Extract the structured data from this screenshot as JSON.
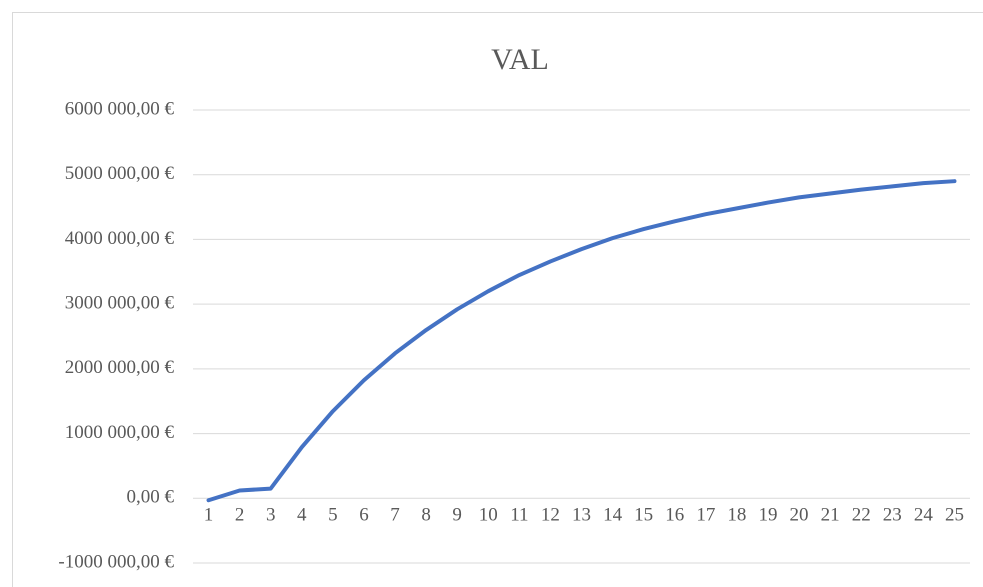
{
  "chart_data": {
    "type": "line",
    "title": "VAL",
    "categories": [
      "1",
      "2",
      "3",
      "4",
      "5",
      "6",
      "7",
      "8",
      "9",
      "10",
      "11",
      "12",
      "13",
      "14",
      "15",
      "16",
      "17",
      "18",
      "19",
      "20",
      "21",
      "22",
      "23",
      "24",
      "25"
    ],
    "series": [
      {
        "name": "VAL",
        "color": "#4472c4",
        "values": [
          -30000,
          120000,
          150000,
          790000,
          1345000,
          1824000,
          2240000,
          2600000,
          2920000,
          3200000,
          3450000,
          3660000,
          3850000,
          4020000,
          4160000,
          4280000,
          4390000,
          4480000,
          4570000,
          4650000,
          4710000,
          4770000,
          4820000,
          4870000,
          4900000
        ]
      }
    ],
    "ylim": [
      -1000000,
      6000000
    ],
    "yticks": [
      {
        "value": -1000000,
        "label": "-1000 000,00 €"
      },
      {
        "value": 0,
        "label": "0,00 €"
      },
      {
        "value": 1000000,
        "label": "1000 000,00 €"
      },
      {
        "value": 2000000,
        "label": "2000 000,00 €"
      },
      {
        "value": 3000000,
        "label": "3000 000,00 €"
      },
      {
        "value": 4000000,
        "label": "4000 000,00 €"
      },
      {
        "value": 5000000,
        "label": "5000 000,00 €"
      },
      {
        "value": 6000000,
        "label": "6000 000,00 €"
      }
    ],
    "grid": true
  }
}
